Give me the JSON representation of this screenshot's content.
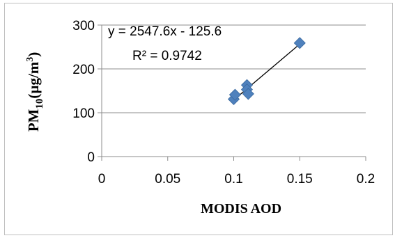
{
  "chart_data": {
    "type": "scatter",
    "title": "",
    "xlabel": "MODIS AOD",
    "ylabel": {
      "prefix": "PM",
      "sub": "10",
      "unit_open": "(µg/m",
      "sup": "3",
      "unit_close": ")"
    },
    "xlim": [
      0,
      0.2
    ],
    "ylim": [
      0,
      300
    ],
    "xticks": [
      {
        "value": 0,
        "label": "0"
      },
      {
        "value": 0.05,
        "label": "0.05"
      },
      {
        "value": 0.1,
        "label": "0.1"
      },
      {
        "value": 0.15,
        "label": "0.15"
      },
      {
        "value": 0.2,
        "label": "0.2"
      }
    ],
    "yticks": [
      {
        "value": 0,
        "label": "0"
      },
      {
        "value": 100,
        "label": "100"
      },
      {
        "value": 200,
        "label": "200"
      },
      {
        "value": 300,
        "label": "300"
      }
    ],
    "grid": {
      "y_major": true,
      "x_major": false
    },
    "legend": "none",
    "series": [
      {
        "marker": "diamond",
        "color": "#4f81bd",
        "points": [
          {
            "x": 0.1,
            "y": 131
          },
          {
            "x": 0.101,
            "y": 141
          },
          {
            "x": 0.11,
            "y": 163
          },
          {
            "x": 0.11,
            "y": 153
          },
          {
            "x": 0.111,
            "y": 143
          },
          {
            "x": 0.15,
            "y": 259
          }
        ]
      }
    ],
    "trendline": {
      "type": "linear",
      "slope": 2547.6,
      "intercept": -125.6,
      "x_range": [
        0.1,
        0.15
      ],
      "color": "#000000",
      "equation_label": "y = 2547.6x - 125.6",
      "r2_label": "R² = 0.9742"
    }
  }
}
